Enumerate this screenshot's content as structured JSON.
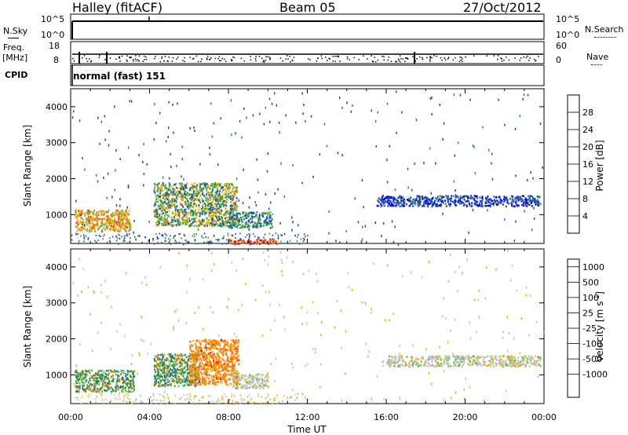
{
  "header": {
    "station": "Halley (fitACF)",
    "beam": "Beam 05",
    "date": "27/Oct/2012"
  },
  "strips": {
    "nsky": {
      "label": "N.Sky",
      "tick_top": "10^5",
      "tick_bottom": "10^0"
    },
    "nsearch": {
      "label": "N.Search",
      "tick_top": "10^5",
      "tick_bottom": "10^0"
    },
    "freq": {
      "label_line1": "Freq.",
      "label_line2": "[MHz]",
      "tick_top": "18",
      "tick_bottom": "8"
    },
    "nave": {
      "label": "Nave",
      "tick_top": "60",
      "tick_bottom": "0"
    },
    "cpid": {
      "label": "CPID",
      "value": "normal (fast) 151"
    }
  },
  "chart_data": [
    {
      "type": "heatmap",
      "panel": "power",
      "xlabel": "",
      "ylabel": "Slant Range [km]",
      "x_range": [
        0,
        24
      ],
      "ylim": [
        200,
        4500
      ],
      "y_ticks": [
        1000,
        2000,
        3000,
        4000
      ],
      "colorbar": {
        "label": "Power [dB]",
        "ticks": [
          "4",
          "8",
          "12",
          "16",
          "20",
          "24",
          "28"
        ],
        "colors": [
          "#0000ff",
          "#2244bb",
          "#2a8a55",
          "#5cb84a",
          "#f5b500",
          "#ff8800",
          "#ff4400",
          "#ff0000"
        ]
      },
      "regions": [
        {
          "t0": 0.2,
          "t1": 3.0,
          "r0": 550,
          "r1": 1150,
          "level": "medium-high"
        },
        {
          "t0": 4.2,
          "t1": 8.4,
          "r0": 700,
          "r1": 1900,
          "level": "medium"
        },
        {
          "t0": 8.0,
          "t1": 10.2,
          "r0": 650,
          "r1": 1100,
          "level": "low-medium"
        },
        {
          "t0": 8.0,
          "t1": 10.5,
          "r0": 200,
          "r1": 330,
          "level": "high"
        },
        {
          "t0": 15.5,
          "t1": 23.8,
          "r0": 1250,
          "r1": 1550,
          "level": "low"
        }
      ]
    },
    {
      "type": "heatmap",
      "panel": "velocity",
      "xlabel": "Time UT",
      "ylabel": "Slant Range [km]",
      "x_ticks": [
        "00:00",
        "04:00",
        "08:00",
        "12:00",
        "16:00",
        "20:00",
        "00:00"
      ],
      "x_range": [
        0,
        24
      ],
      "ylim": [
        200,
        4500
      ],
      "y_ticks": [
        1000,
        2000,
        3000,
        4000
      ],
      "colorbar": {
        "label": "Velocity [m s^-1]",
        "ticks": [
          "1000",
          "500",
          "100",
          "25",
          "-25",
          "-100",
          "-500",
          "-1000"
        ],
        "colors": [
          "#1a33cc",
          "#336699",
          "#2e8b57",
          "#55c030",
          "#bfbfbf",
          "#f5b500",
          "#ff8000",
          "#ff2000",
          "#ff0000"
        ]
      },
      "regions": [
        {
          "t0": 0.2,
          "t1": 3.2,
          "r0": 550,
          "r1": 1150,
          "level": "toward"
        },
        {
          "t0": 4.2,
          "t1": 6.5,
          "r0": 700,
          "r1": 1600,
          "level": "toward"
        },
        {
          "t0": 6.0,
          "t1": 8.5,
          "r0": 750,
          "r1": 2000,
          "level": "away"
        },
        {
          "t0": 8.2,
          "t1": 10.0,
          "r0": 650,
          "r1": 1050,
          "level": "near-zero"
        },
        {
          "t0": 16.0,
          "t1": 23.8,
          "r0": 1250,
          "r1": 1550,
          "level": "near-zero"
        }
      ]
    }
  ]
}
